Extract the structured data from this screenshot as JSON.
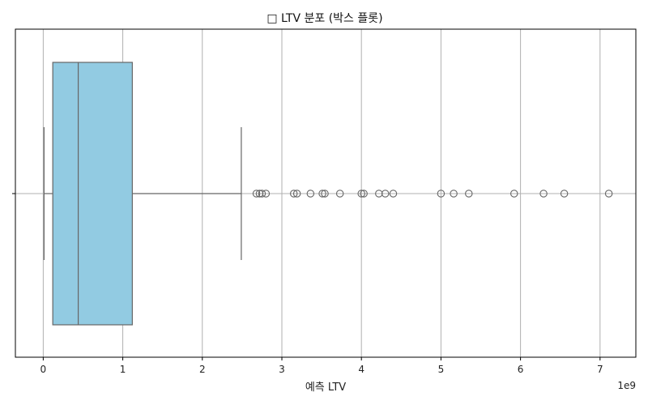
{
  "chart_data": {
    "type": "box",
    "title": "□ LTV 분포 (박스 플롯)",
    "xlabel": "예측 LTV",
    "ylabel": "",
    "x_scale_label": "1e9",
    "xlim": [
      -0.35,
      7.45
    ],
    "x_ticks": [
      0,
      1,
      2,
      3,
      4,
      5,
      6,
      7
    ],
    "x_tick_labels": [
      "0",
      "1",
      "2",
      "3",
      "4",
      "5",
      "6",
      "7"
    ],
    "grid": true,
    "box": {
      "whisker_low": 0.01,
      "q1": 0.12,
      "median": 0.44,
      "q3": 1.12,
      "whisker_high": 2.49,
      "fill_color": "#92cbe2",
      "edge_color": "#666666"
    },
    "outliers": [
      2.68,
      2.72,
      2.75,
      2.8,
      3.15,
      3.19,
      3.36,
      3.51,
      3.54,
      3.73,
      4.0,
      4.03,
      4.22,
      4.3,
      4.4,
      5.0,
      5.16,
      5.35,
      5.92,
      6.29,
      6.55,
      7.11
    ]
  }
}
